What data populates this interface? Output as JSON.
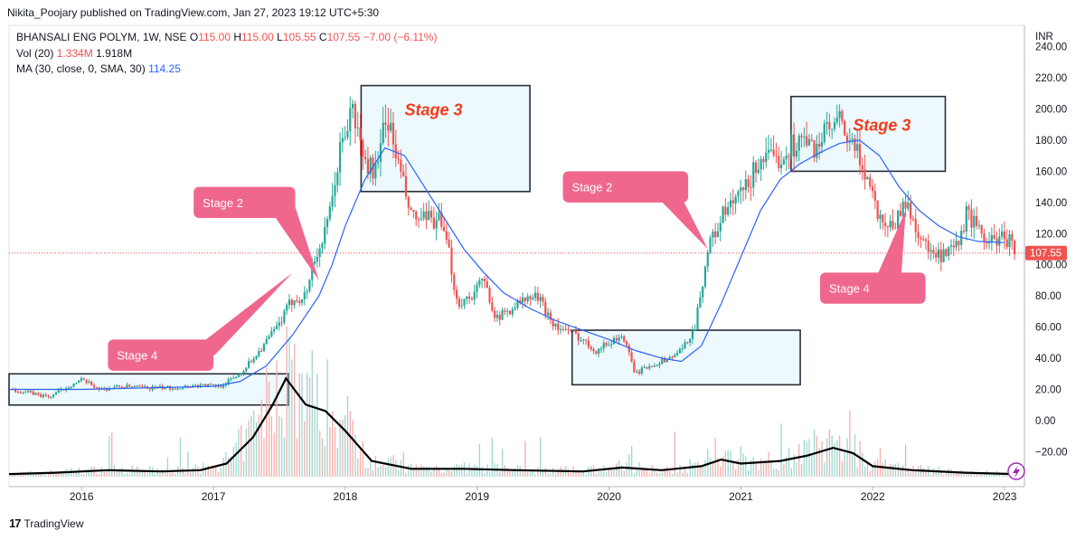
{
  "publisher_line": "Nikita_Poojary published on TradingView.com, Jan 27, 2023 19:12 UTC+5:30",
  "header": {
    "symbol": "BHANSALI ENG POLYM, 1W, NSE",
    "o_label": "O",
    "o_value": "115.00",
    "h_label": "H",
    "h_value": "115.00",
    "l_label": "L",
    "l_value": "105.55",
    "c_label": "C",
    "c_value": "107.55",
    "change": "−7.00 (−6.11%)",
    "vol_label": "Vol (20)",
    "vol_value1": "1.334M",
    "vol_value2": "1.918M",
    "ma_label": "MA (30, close, 0, SMA, 30)",
    "ma_value": "114.25"
  },
  "footer": {
    "brand": "TradingView",
    "logo_glyph": "17"
  },
  "chart_data": {
    "type": "candlestick",
    "currency": "INR",
    "last_price": "107.55",
    "y_ticks": [
      "240.00",
      "220.00",
      "200.00",
      "180.00",
      "160.00",
      "140.00",
      "120.00",
      "100.00",
      "80.00",
      "60.00",
      "40.00",
      "20.00",
      "0.00",
      "−20.00"
    ],
    "ylim": [
      -40,
      245
    ],
    "x_ticks": [
      {
        "label": "2016",
        "t": 2016.0
      },
      {
        "label": "2017",
        "t": 2017.0
      },
      {
        "label": "2018",
        "t": 2018.0
      },
      {
        "label": "2019",
        "t": 2019.0
      },
      {
        "label": "2020",
        "t": 2020.0
      },
      {
        "label": "2021",
        "t": 2021.0
      },
      {
        "label": "2022",
        "t": 2022.0
      },
      {
        "label": "2023",
        "t": 2023.0
      }
    ],
    "xlim": [
      2015.45,
      2023.15
    ],
    "price_path": [
      [
        2015.45,
        20
      ],
      [
        2015.6,
        18
      ],
      [
        2015.75,
        15
      ],
      [
        2015.9,
        22
      ],
      [
        2016.0,
        26
      ],
      [
        2016.15,
        20
      ],
      [
        2016.3,
        22
      ],
      [
        2016.5,
        21
      ],
      [
        2016.7,
        21
      ],
      [
        2016.9,
        23
      ],
      [
        2017.05,
        22
      ],
      [
        2017.2,
        30
      ],
      [
        2017.35,
        45
      ],
      [
        2017.5,
        62
      ],
      [
        2017.6,
        78
      ],
      [
        2017.7,
        80
      ],
      [
        2017.75,
        100
      ],
      [
        2017.85,
        120
      ],
      [
        2017.9,
        140
      ],
      [
        2017.95,
        170
      ],
      [
        2018.05,
        200
      ],
      [
        2018.15,
        165
      ],
      [
        2018.25,
        160
      ],
      [
        2018.3,
        200
      ],
      [
        2018.4,
        165
      ],
      [
        2018.5,
        130
      ],
      [
        2018.6,
        128
      ],
      [
        2018.7,
        130
      ],
      [
        2018.78,
        110
      ],
      [
        2018.85,
        75
      ],
      [
        2018.95,
        80
      ],
      [
        2019.05,
        90
      ],
      [
        2019.15,
        65
      ],
      [
        2019.3,
        75
      ],
      [
        2019.45,
        80
      ],
      [
        2019.6,
        60
      ],
      [
        2019.75,
        55
      ],
      [
        2019.9,
        45
      ],
      [
        2020.0,
        50
      ],
      [
        2020.1,
        55
      ],
      [
        2020.2,
        30
      ],
      [
        2020.3,
        35
      ],
      [
        2020.45,
        40
      ],
      [
        2020.55,
        45
      ],
      [
        2020.65,
        60
      ],
      [
        2020.75,
        110
      ],
      [
        2020.85,
        130
      ],
      [
        2020.95,
        140
      ],
      [
        2021.05,
        150
      ],
      [
        2021.15,
        170
      ],
      [
        2021.25,
        165
      ],
      [
        2021.35,
        175
      ],
      [
        2021.45,
        180
      ],
      [
        2021.55,
        175
      ],
      [
        2021.65,
        185
      ],
      [
        2021.75,
        190
      ],
      [
        2021.85,
        175
      ],
      [
        2021.95,
        160
      ],
      [
        2022.05,
        130
      ],
      [
        2022.15,
        125
      ],
      [
        2022.25,
        140
      ],
      [
        2022.35,
        120
      ],
      [
        2022.45,
        105
      ],
      [
        2022.55,
        105
      ],
      [
        2022.65,
        112
      ],
      [
        2022.72,
        135
      ],
      [
        2022.8,
        120
      ],
      [
        2022.9,
        115
      ],
      [
        2023.0,
        118
      ],
      [
        2023.05,
        115
      ],
      [
        2023.08,
        107.55
      ]
    ],
    "ma_path": [
      [
        2015.45,
        20
      ],
      [
        2016.0,
        20
      ],
      [
        2016.5,
        21
      ],
      [
        2017.0,
        22
      ],
      [
        2017.2,
        25
      ],
      [
        2017.4,
        35
      ],
      [
        2017.6,
        55
      ],
      [
        2017.8,
        80
      ],
      [
        2017.9,
        100
      ],
      [
        2018.0,
        125
      ],
      [
        2018.15,
        155
      ],
      [
        2018.3,
        175
      ],
      [
        2018.45,
        170
      ],
      [
        2018.6,
        150
      ],
      [
        2018.75,
        130
      ],
      [
        2018.9,
        110
      ],
      [
        2019.05,
        95
      ],
      [
        2019.2,
        82
      ],
      [
        2019.4,
        72
      ],
      [
        2019.6,
        64
      ],
      [
        2019.8,
        58
      ],
      [
        2020.0,
        52
      ],
      [
        2020.2,
        45
      ],
      [
        2020.4,
        40
      ],
      [
        2020.55,
        38
      ],
      [
        2020.7,
        48
      ],
      [
        2020.85,
        75
      ],
      [
        2021.0,
        105
      ],
      [
        2021.15,
        135
      ],
      [
        2021.3,
        155
      ],
      [
        2021.45,
        165
      ],
      [
        2021.6,
        172
      ],
      [
        2021.75,
        178
      ],
      [
        2021.9,
        180
      ],
      [
        2022.05,
        170
      ],
      [
        2022.2,
        150
      ],
      [
        2022.35,
        135
      ],
      [
        2022.5,
        125
      ],
      [
        2022.65,
        118
      ],
      [
        2022.8,
        115
      ],
      [
        2023.0,
        114.25
      ]
    ],
    "volume_avg_path": [
      [
        2015.45,
        0.2
      ],
      [
        2015.8,
        0.3
      ],
      [
        2016.2,
        0.5
      ],
      [
        2016.6,
        0.4
      ],
      [
        2016.9,
        0.5
      ],
      [
        2017.1,
        1.0
      ],
      [
        2017.3,
        3.0
      ],
      [
        2017.45,
        5.5
      ],
      [
        2017.55,
        7.5
      ],
      [
        2017.7,
        5.5
      ],
      [
        2017.85,
        5.0
      ],
      [
        2018.0,
        3.5
      ],
      [
        2018.2,
        1.2
      ],
      [
        2018.5,
        0.6
      ],
      [
        2018.9,
        0.6
      ],
      [
        2019.3,
        0.5
      ],
      [
        2019.8,
        0.4
      ],
      [
        2020.1,
        0.7
      ],
      [
        2020.4,
        0.5
      ],
      [
        2020.7,
        0.8
      ],
      [
        2020.85,
        1.3
      ],
      [
        2021.0,
        1.0
      ],
      [
        2021.3,
        1.2
      ],
      [
        2021.5,
        1.6
      ],
      [
        2021.7,
        2.2
      ],
      [
        2021.85,
        1.8
      ],
      [
        2022.0,
        0.8
      ],
      [
        2022.3,
        0.5
      ],
      [
        2022.7,
        0.3
      ],
      [
        2023.08,
        0.2
      ]
    ],
    "annotations": {
      "boxes": [
        {
          "x0": 2015.45,
          "x1": 2017.57,
          "y0": 10,
          "y1": 30
        },
        {
          "x0": 2018.12,
          "x1": 2019.4,
          "y0": 147,
          "y1": 215
        },
        {
          "x0": 2019.72,
          "x1": 2021.45,
          "y0": 23,
          "y1": 58
        },
        {
          "x0": 2021.38,
          "x1": 2022.55,
          "y0": 160,
          "y1": 208
        }
      ],
      "stage_texts": [
        {
          "text": "Stage 3",
          "x": 2018.45,
          "y": 196
        },
        {
          "text": "Stage 3",
          "x": 2021.85,
          "y": 186
        }
      ],
      "callouts": [
        {
          "text": "Stage 2",
          "x0": 2016.85,
          "x1": 2017.62,
          "y0": 130,
          "y1": 150,
          "tip_x": 2017.8,
          "tip_y": 90,
          "base_x": 2017.5
        },
        {
          "text": "Stage 4",
          "x0": 2016.2,
          "x1": 2017.0,
          "y0": 32,
          "y1": 52,
          "tip_x": 2017.6,
          "tip_y": 95,
          "base_x": 2016.9
        },
        {
          "text": "Stage 2",
          "x0": 2019.65,
          "x1": 2020.6,
          "y0": 140,
          "y1": 160,
          "tip_x": 2020.75,
          "tip_y": 110,
          "base_x": 2020.4
        },
        {
          "text": "Stage 4",
          "x0": 2021.6,
          "x1": 2022.4,
          "y0": 75,
          "y1": 95,
          "tip_x": 2022.25,
          "tip_y": 135,
          "base_x": 2022.1
        }
      ],
      "callout_labels": [
        "Stage 2",
        "Stage 4",
        "Stage 2",
        "Stage 4"
      ]
    },
    "colors": {
      "up": "#26a69a",
      "down": "#ef5350",
      "ma": "#2962ff",
      "callout": "#f0678e",
      "stage3": "#f23b1c",
      "box_fill": "#e9f7fb",
      "volume_line": "#000000"
    }
  }
}
